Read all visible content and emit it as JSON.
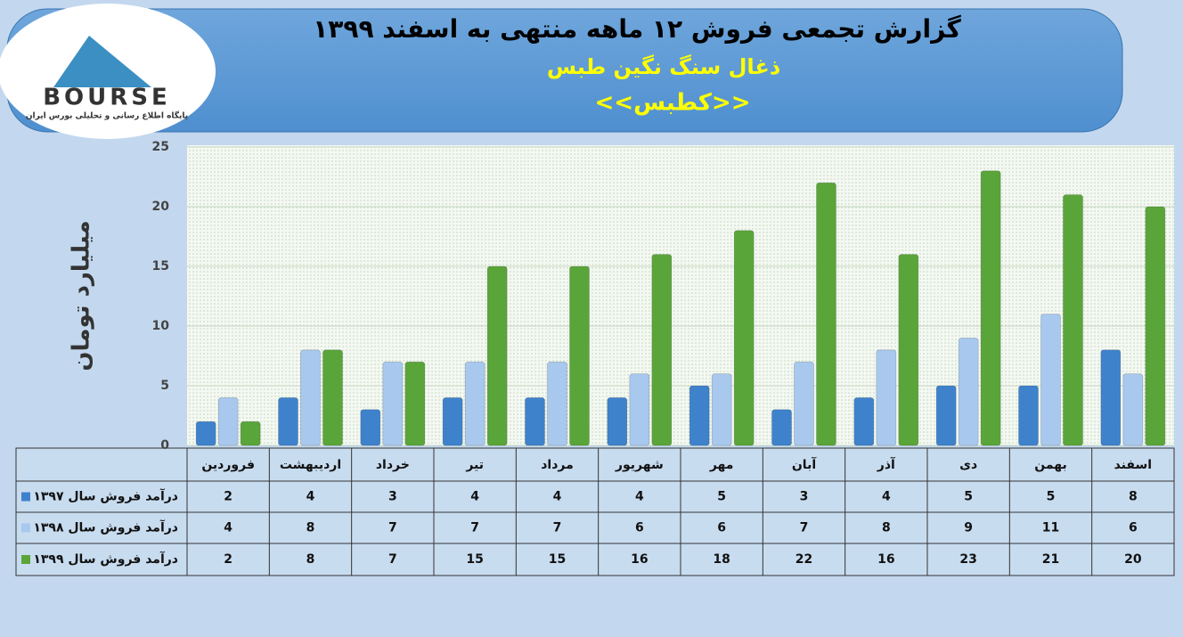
{
  "logo": {
    "name": "BOURSE",
    "tagline": "پایگاه اطلاع رسانی و تحلیلی بورس ایران"
  },
  "chart_data": {
    "type": "bar",
    "title": "گزارش تجمعی فروش ۱۲ ماهه منتهی به اسفند ۱۳۹۹",
    "subtitle": "ذغال سنگ نگین طبس",
    "symbol": "<<کطبس>>",
    "y_label": "میلیارد تومان",
    "categories": [
      "فروردین",
      "اردیبهشت",
      "خرداد",
      "تیر",
      "مرداد",
      "شهریور",
      "مهر",
      "آبان",
      "آذر",
      "دی",
      "بهمن",
      "اسفند"
    ],
    "series": [
      {
        "name": "درآمد فروش سال ۱۳۹۷",
        "color": "#3f82cc",
        "values": [
          2,
          4,
          3,
          4,
          4,
          4,
          5,
          3,
          4,
          5,
          5,
          8
        ]
      },
      {
        "name": "درآمد فروش سال ۱۳۹۸",
        "color": "#a8c8ee",
        "values": [
          4,
          8,
          7,
          7,
          7,
          6,
          6,
          7,
          8,
          9,
          11,
          6
        ]
      },
      {
        "name": "درآمد فروش سال ۱۳۹۹",
        "color": "#5aa53a",
        "values": [
          2,
          8,
          7,
          15,
          15,
          16,
          18,
          22,
          16,
          23,
          21,
          20
        ]
      }
    ],
    "ylim": [
      0,
      25
    ],
    "yticks": [
      0,
      5,
      10,
      15,
      20,
      25
    ],
    "grid": true
  }
}
